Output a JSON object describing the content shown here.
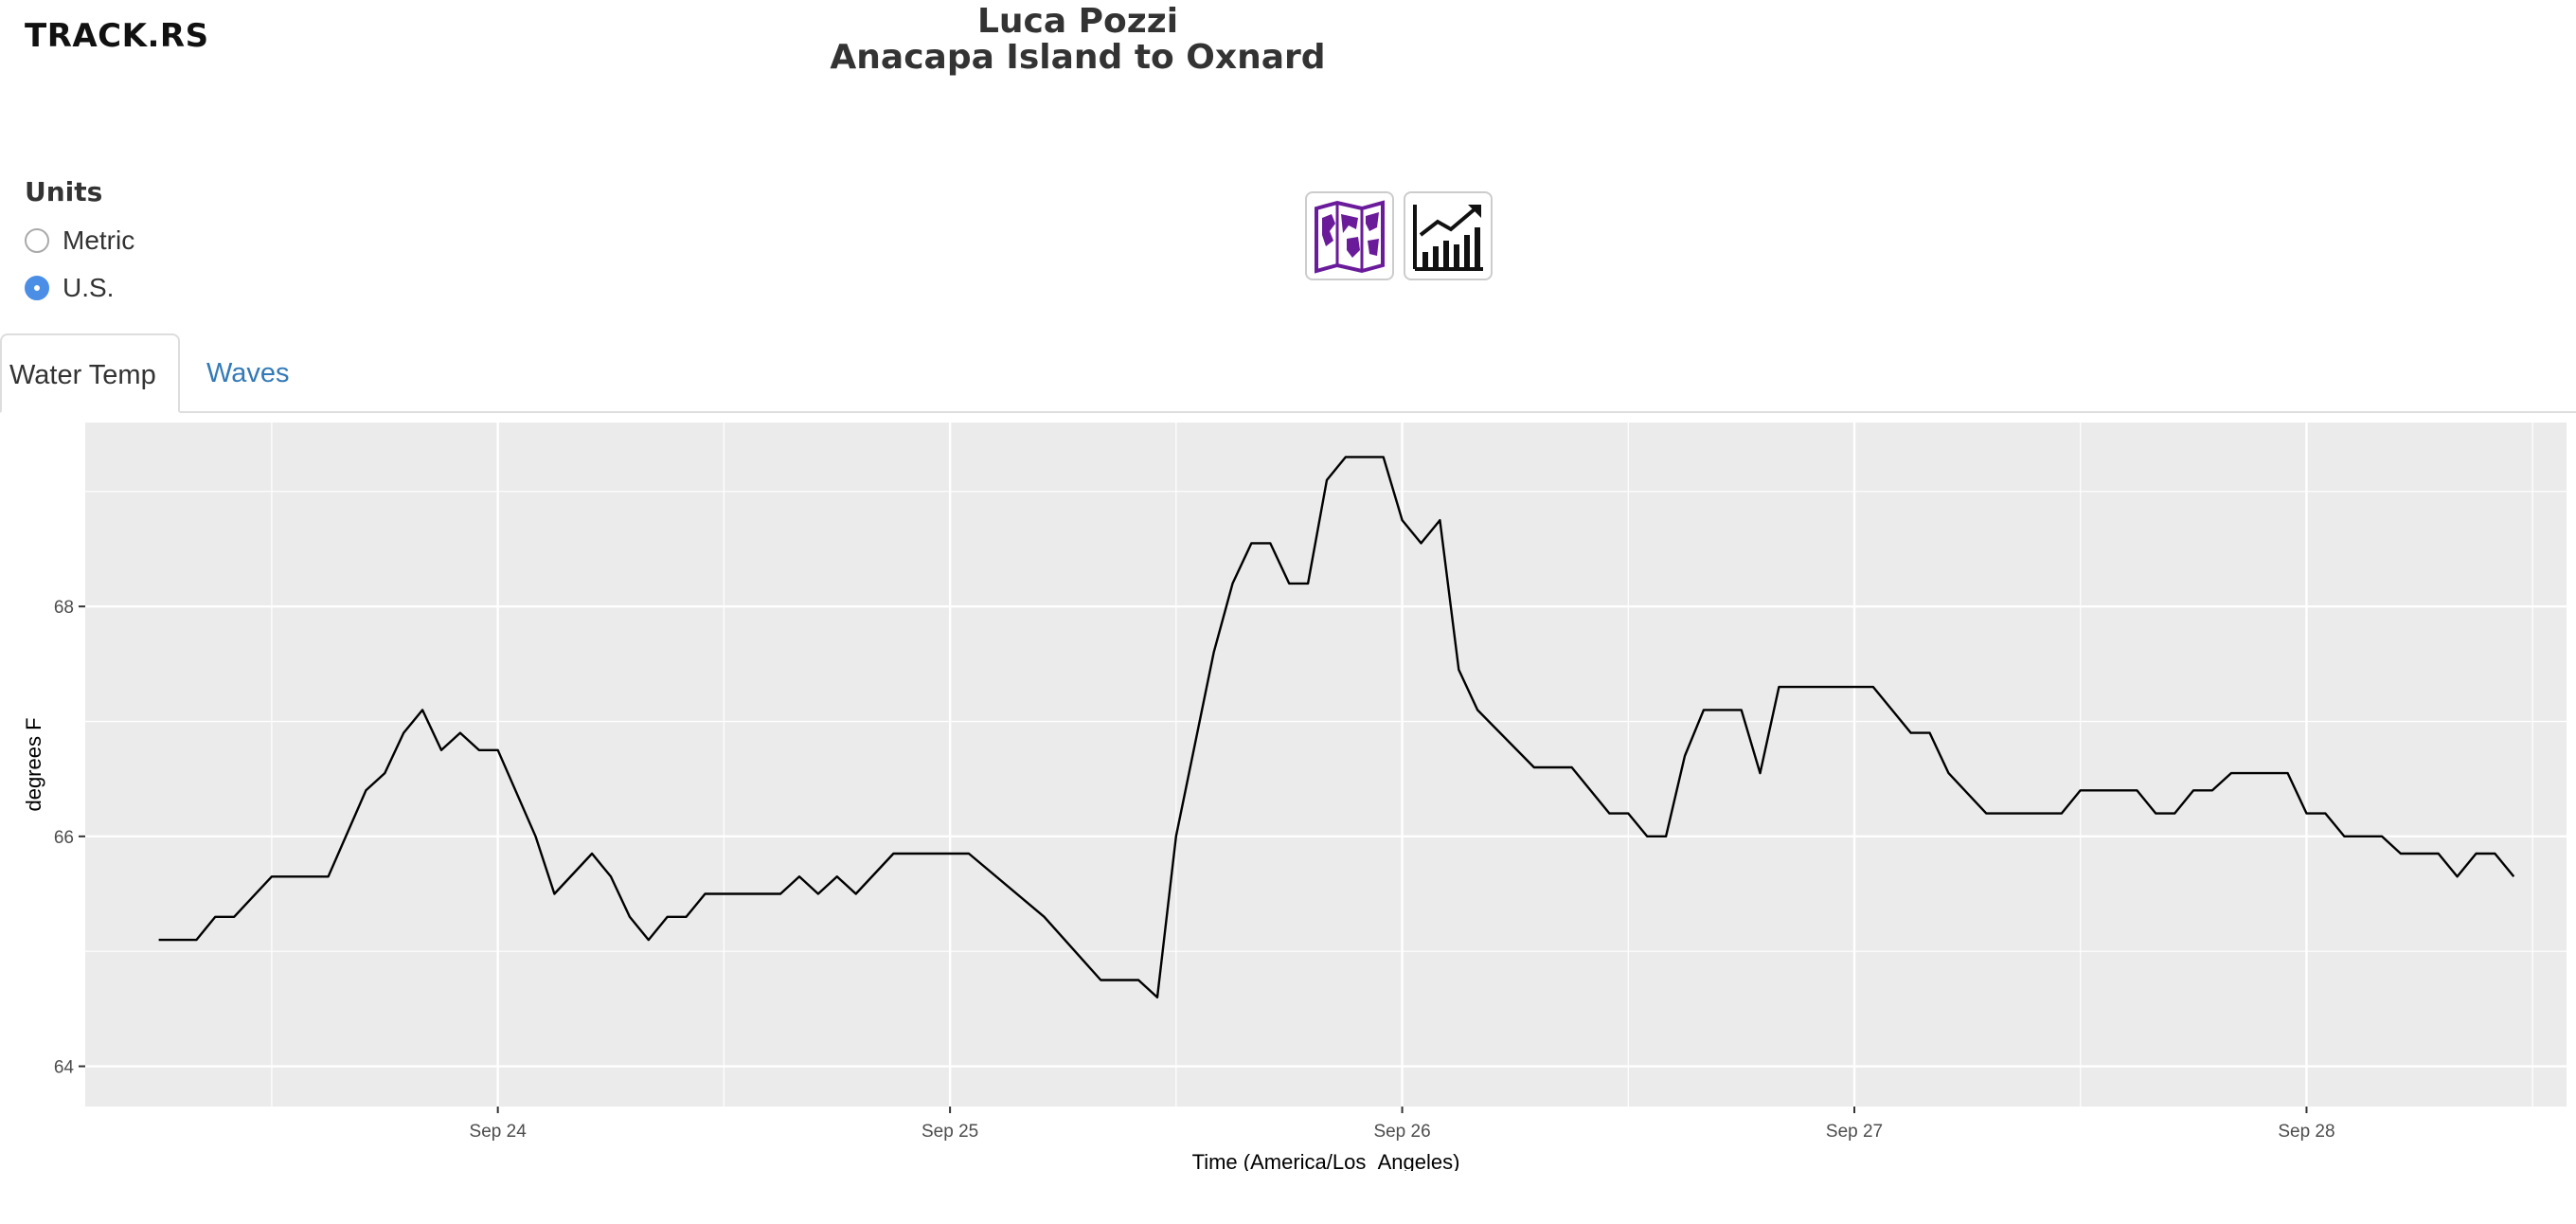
{
  "app": {
    "logo": "TRACK.RS"
  },
  "header": {
    "name": "Luca Pozzi",
    "route": "Anacapa Island to Oxnard"
  },
  "units": {
    "title": "Units",
    "options": [
      {
        "label": "Metric",
        "selected": false
      },
      {
        "label": "U.S.",
        "selected": true
      }
    ]
  },
  "view_buttons": [
    {
      "icon": "map-icon",
      "color": "#6a1b9a"
    },
    {
      "icon": "chart-icon",
      "color": "#111111"
    }
  ],
  "tabs": [
    {
      "label": "Water Temp",
      "active": true
    },
    {
      "label": "Waves",
      "active": false
    }
  ],
  "colors": {
    "panel": "#ebebeb",
    "grid": "#ffffff",
    "line": "#000000",
    "accent": "#4a8ee5",
    "link": "#337ab7"
  },
  "chart_data": {
    "type": "line",
    "title": "",
    "xlabel": "Time (America/Los_Angeles)",
    "ylabel": "degrees F",
    "x_ticks": [
      "Sep 24",
      "Sep 25",
      "Sep 26",
      "Sep 27",
      "Sep 28"
    ],
    "y_ticks": [
      64,
      66,
      68
    ],
    "xlim": [
      "2024-09-23 02:06",
      "2024-09-28 13:48"
    ],
    "ylim": [
      63.65,
      69.6
    ],
    "grid": true,
    "legend": "none",
    "series": [
      {
        "points": [
          [
            "2024-09-23 06:00",
            65.1
          ],
          [
            "2024-09-23 08:00",
            65.1
          ],
          [
            "2024-09-23 09:00",
            65.3
          ],
          [
            "2024-09-23 10:00",
            65.3
          ],
          [
            "2024-09-23 12:00",
            65.65
          ],
          [
            "2024-09-23 15:00",
            65.65
          ],
          [
            "2024-09-23 17:00",
            66.4
          ],
          [
            "2024-09-23 18:00",
            66.55
          ],
          [
            "2024-09-23 19:00",
            66.9
          ],
          [
            "2024-09-23 20:00",
            67.1
          ],
          [
            "2024-09-23 21:00",
            66.75
          ],
          [
            "2024-09-23 22:00",
            66.9
          ],
          [
            "2024-09-23 23:00",
            66.75
          ],
          [
            "2024-09-24 00:00",
            66.75
          ],
          [
            "2024-09-24 02:00",
            66.0
          ],
          [
            "2024-09-24 03:00",
            65.5
          ],
          [
            "2024-09-24 05:00",
            65.85
          ],
          [
            "2024-09-24 06:00",
            65.65
          ],
          [
            "2024-09-24 07:00",
            65.3
          ],
          [
            "2024-09-24 08:00",
            65.1
          ],
          [
            "2024-09-24 09:00",
            65.3
          ],
          [
            "2024-09-24 10:00",
            65.3
          ],
          [
            "2024-09-24 11:00",
            65.5
          ],
          [
            "2024-09-24 12:00",
            65.5
          ],
          [
            "2024-09-24 15:00",
            65.5
          ],
          [
            "2024-09-24 16:00",
            65.65
          ],
          [
            "2024-09-24 17:00",
            65.5
          ],
          [
            "2024-09-24 18:00",
            65.65
          ],
          [
            "2024-09-24 19:00",
            65.5
          ],
          [
            "2024-09-24 21:00",
            65.85
          ],
          [
            "2024-09-24 23:00",
            65.85
          ],
          [
            "2024-09-25 01:00",
            65.85
          ],
          [
            "2024-09-25 05:00",
            65.3
          ],
          [
            "2024-09-25 08:00",
            64.75
          ],
          [
            "2024-09-25 10:00",
            64.75
          ],
          [
            "2024-09-25 11:00",
            64.6
          ],
          [
            "2024-09-25 12:00",
            66.0
          ],
          [
            "2024-09-25 14:00",
            67.6
          ],
          [
            "2024-09-25 15:00",
            68.2
          ],
          [
            "2024-09-25 16:00",
            68.55
          ],
          [
            "2024-09-25 17:00",
            68.55
          ],
          [
            "2024-09-25 18:00",
            68.2
          ],
          [
            "2024-09-25 19:00",
            68.2
          ],
          [
            "2024-09-25 20:00",
            69.1
          ],
          [
            "2024-09-25 21:00",
            69.3
          ],
          [
            "2024-09-25 23:00",
            69.3
          ],
          [
            "2024-09-26 00:00",
            68.75
          ],
          [
            "2024-09-26 01:00",
            68.55
          ],
          [
            "2024-09-26 02:00",
            68.75
          ],
          [
            "2024-09-26 03:00",
            67.45
          ],
          [
            "2024-09-26 04:00",
            67.1
          ],
          [
            "2024-09-26 07:00",
            66.6
          ],
          [
            "2024-09-26 09:00",
            66.6
          ],
          [
            "2024-09-26 11:00",
            66.2
          ],
          [
            "2024-09-26 12:00",
            66.2
          ],
          [
            "2024-09-26 13:00",
            66.0
          ],
          [
            "2024-09-26 14:00",
            66.0
          ],
          [
            "2024-09-26 15:00",
            66.7
          ],
          [
            "2024-09-26 16:00",
            67.1
          ],
          [
            "2024-09-26 18:00",
            67.1
          ],
          [
            "2024-09-26 19:00",
            66.55
          ],
          [
            "2024-09-26 20:00",
            67.3
          ],
          [
            "2024-09-26 22:00",
            67.3
          ],
          [
            "2024-09-27 01:00",
            67.3
          ],
          [
            "2024-09-27 03:00",
            66.9
          ],
          [
            "2024-09-27 04:00",
            66.9
          ],
          [
            "2024-09-27 05:00",
            66.55
          ],
          [
            "2024-09-27 07:00",
            66.2
          ],
          [
            "2024-09-27 10:00",
            66.2
          ],
          [
            "2024-09-27 11:00",
            66.2
          ],
          [
            "2024-09-27 12:00",
            66.4
          ],
          [
            "2024-09-27 15:00",
            66.4
          ],
          [
            "2024-09-27 16:00",
            66.2
          ],
          [
            "2024-09-27 17:00",
            66.2
          ],
          [
            "2024-09-27 18:00",
            66.4
          ],
          [
            "2024-09-27 19:00",
            66.4
          ],
          [
            "2024-09-27 20:00",
            66.55
          ],
          [
            "2024-09-27 23:00",
            66.55
          ],
          [
            "2024-09-28 00:00",
            66.2
          ],
          [
            "2024-09-28 01:00",
            66.2
          ],
          [
            "2024-09-28 02:00",
            66.0
          ],
          [
            "2024-09-28 04:00",
            66.0
          ],
          [
            "2024-09-28 05:00",
            65.85
          ],
          [
            "2024-09-28 06:00",
            65.85
          ],
          [
            "2024-09-28 07:00",
            65.85
          ],
          [
            "2024-09-28 08:00",
            65.65
          ],
          [
            "2024-09-28 09:00",
            65.85
          ],
          [
            "2024-09-28 10:00",
            65.85
          ],
          [
            "2024-09-28 11:00",
            65.65
          ]
        ]
      }
    ]
  }
}
